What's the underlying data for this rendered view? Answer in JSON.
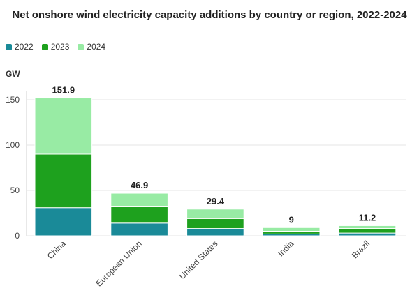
{
  "chart_data": {
    "type": "bar",
    "title": "Net onshore wind electricity capacity additions by country or region, 2022-2024",
    "ylabel": "GW",
    "ylim": [
      0,
      160
    ],
    "yticks": [
      0,
      50,
      100,
      150
    ],
    "grid": true,
    "legend_position": "top-left",
    "categories": [
      "China",
      "European Union",
      "United States",
      "India",
      "Brazil"
    ],
    "series": [
      {
        "name": "2022",
        "color": "#1a8a98",
        "values": [
          31,
          14,
          8,
          2,
          3
        ]
      },
      {
        "name": "2023",
        "color": "#1ea11e",
        "values": [
          59,
          18,
          11,
          3,
          5
        ]
      },
      {
        "name": "2024",
        "color": "#98eba4",
        "values": [
          61.9,
          14.9,
          10.4,
          4,
          3.2
        ]
      }
    ],
    "totals": [
      "151.9",
      "46.9",
      "29.4",
      "9",
      "11.2"
    ]
  }
}
